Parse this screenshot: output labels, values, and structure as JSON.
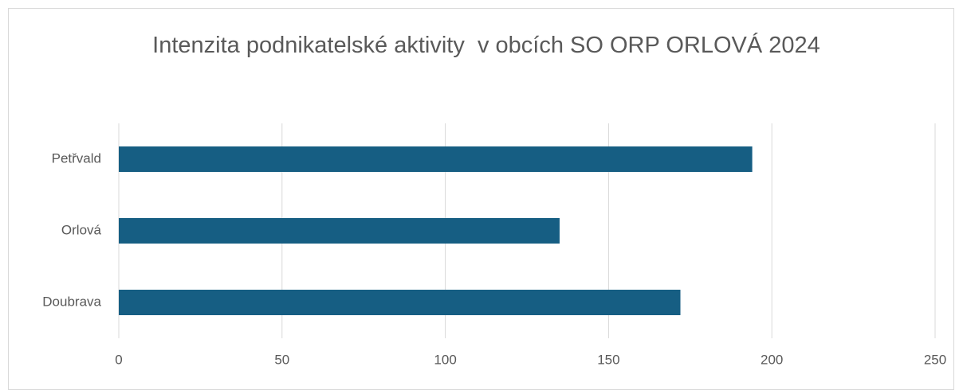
{
  "chart_data": {
    "type": "bar",
    "orientation": "horizontal",
    "title": "Intenzita podnikatelské aktivity  v obcích SO ORP ORLOVÁ 2024",
    "categories": [
      "Petřvald",
      "Orlová",
      "Doubrava"
    ],
    "values": [
      194,
      135,
      172
    ],
    "color": "#165e83",
    "xlim": [
      0,
      250
    ],
    "xticks": [
      0,
      50,
      100,
      150,
      200,
      250
    ],
    "grid": true
  }
}
